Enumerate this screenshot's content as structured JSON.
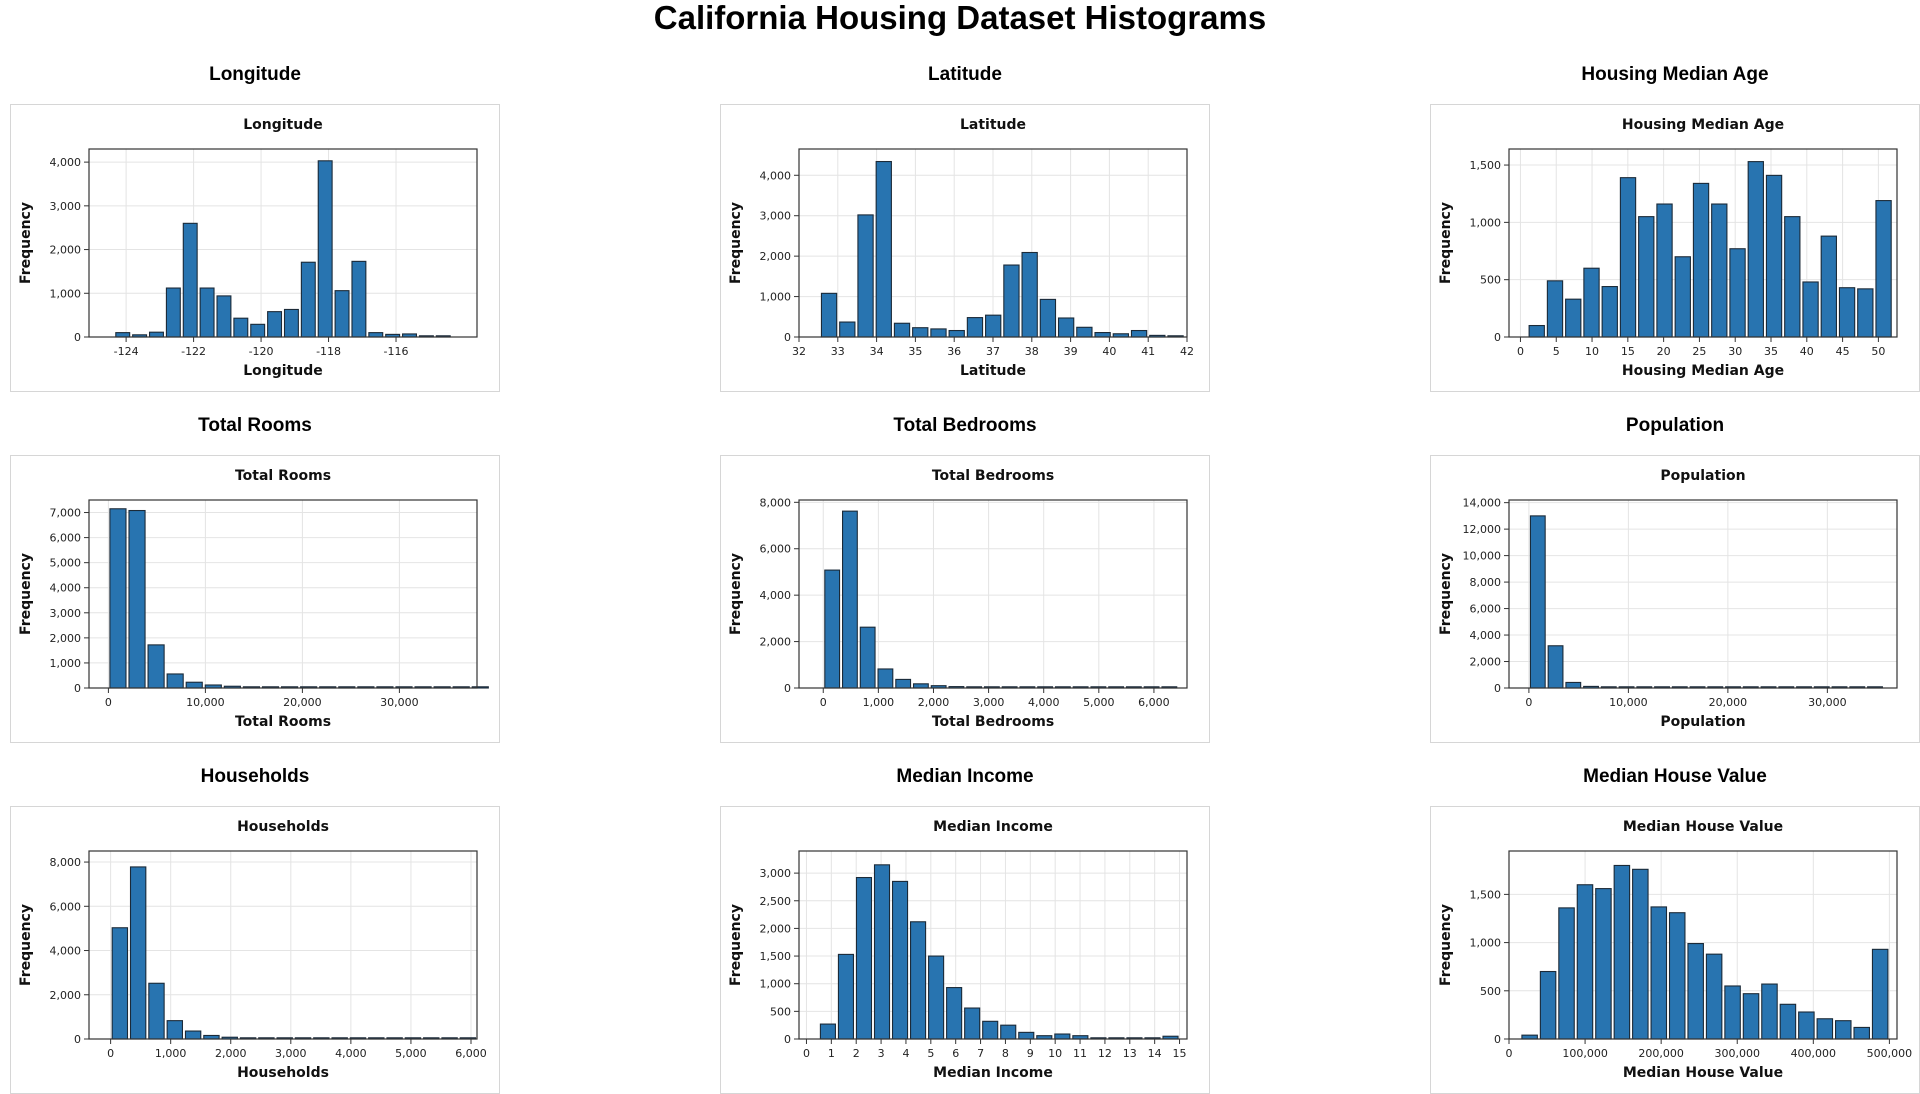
{
  "title": "California Housing Dataset Histograms",
  "chart_data": [
    {
      "type": "bar",
      "title": "Longitude",
      "inner_title": "Longitude",
      "xlabel": "Longitude",
      "ylabel": "Frequency",
      "xlim": [
        -125.1,
        -113.6
      ],
      "ylim": [
        0,
        4300
      ],
      "xticks": [
        -124,
        -122,
        -120,
        -118,
        -116
      ],
      "xtick_labels": [
        "-124",
        "-122",
        "-120",
        "-118",
        "-116"
      ],
      "yticks": [
        0,
        1000,
        2000,
        3000,
        4000
      ],
      "ytick_labels": [
        "0",
        "1,000",
        "2,000",
        "3,000",
        "4,000"
      ],
      "bin_start": -124.35,
      "bin_width": 0.5,
      "values": [
        100,
        50,
        110,
        1120,
        2600,
        1120,
        940,
        430,
        290,
        580,
        630,
        1710,
        4030,
        1060,
        1730,
        100,
        60,
        70,
        20,
        20
      ],
      "grid": true,
      "bar_color": "#2874b0"
    },
    {
      "type": "bar",
      "title": "Latitude",
      "inner_title": "Latitude",
      "xlabel": "Latitude",
      "ylabel": "Frequency",
      "xlim": [
        32,
        42
      ],
      "ylim": [
        0,
        4650
      ],
      "xticks": [
        32,
        33,
        34,
        35,
        36,
        37,
        38,
        39,
        40,
        41,
        42
      ],
      "xtick_labels": [
        "32",
        "33",
        "34",
        "35",
        "36",
        "37",
        "38",
        "39",
        "40",
        "41",
        "42"
      ],
      "yticks": [
        0,
        1000,
        2000,
        3000,
        4000
      ],
      "ytick_labels": [
        "0",
        "1,000",
        "2,000",
        "3,000",
        "4,000"
      ],
      "bin_start": 32.54,
      "bin_width": 0.47,
      "values": [
        1080,
        370,
        3020,
        4340,
        340,
        230,
        200,
        160,
        480,
        540,
        1780,
        2090,
        930,
        470,
        240,
        110,
        80,
        160,
        40,
        30
      ],
      "grid": true,
      "bar_color": "#2874b0"
    },
    {
      "type": "bar",
      "title": "Housing Median Age",
      "inner_title": "Housing Median Age",
      "xlabel": "Housing Median Age",
      "ylabel": "Frequency",
      "xlim": [
        -1.6,
        52.6
      ],
      "ylim": [
        0,
        1640
      ],
      "xticks": [
        0,
        5,
        10,
        15,
        20,
        25,
        30,
        35,
        40,
        45,
        50
      ],
      "xtick_labels": [
        "0",
        "5",
        "10",
        "15",
        "20",
        "25",
        "30",
        "35",
        "40",
        "45",
        "50"
      ],
      "yticks": [
        0,
        500,
        1000,
        1500
      ],
      "ytick_labels": [
        "0",
        "500",
        "1,000",
        "1,500"
      ],
      "bin_start": 1,
      "bin_width": 2.55,
      "values": [
        100,
        490,
        330,
        600,
        440,
        1390,
        1050,
        1160,
        700,
        1340,
        1160,
        770,
        1530,
        1410,
        1050,
        480,
        880,
        430,
        420,
        1190
      ],
      "grid": true,
      "bar_color": "#2874b0"
    },
    {
      "type": "bar",
      "title": "Total Rooms",
      "inner_title": "Total Rooms",
      "xlabel": "Total Rooms",
      "ylabel": "Frequency",
      "xlim": [
        -2000,
        38000
      ],
      "ylim": [
        0,
        7500
      ],
      "xticks": [
        0,
        10000,
        20000,
        30000
      ],
      "xtick_labels": [
        "0",
        "10,000",
        "20,000",
        "30,000"
      ],
      "yticks": [
        0,
        1000,
        2000,
        3000,
        4000,
        5000,
        6000,
        7000
      ],
      "ytick_labels": [
        "0",
        "1,000",
        "2,000",
        "3,000",
        "4,000",
        "5,000",
        "6,000",
        "7,000"
      ],
      "bin_start": 2,
      "bin_width": 1966,
      "values": [
        7150,
        7080,
        1720,
        560,
        230,
        120,
        70,
        40,
        25,
        15,
        10,
        8,
        5,
        4,
        3,
        2,
        2,
        1,
        1,
        1
      ],
      "grid": true,
      "bar_color": "#2874b0"
    },
    {
      "type": "bar",
      "title": "Total Bedrooms",
      "inner_title": "Total Bedrooms",
      "xlabel": "Total Bedrooms",
      "ylabel": "Frequency",
      "xlim": [
        -440,
        6600
      ],
      "ylim": [
        0,
        8100
      ],
      "xticks": [
        0,
        1000,
        2000,
        3000,
        4000,
        5000,
        6000
      ],
      "xtick_labels": [
        "0",
        "1,000",
        "2,000",
        "3,000",
        "4,000",
        "5,000",
        "6,000"
      ],
      "bin_start": 1,
      "bin_width": 322,
      "yticks": [
        0,
        2000,
        4000,
        6000,
        8000
      ],
      "ytick_labels": [
        "0",
        "2,000",
        "4,000",
        "6,000",
        "8,000"
      ],
      "values": [
        5080,
        7620,
        2620,
        820,
        370,
        180,
        100,
        60,
        40,
        25,
        15,
        10,
        8,
        5,
        4,
        3,
        2,
        2,
        1,
        1
      ],
      "grid": true,
      "bar_color": "#2874b0"
    },
    {
      "type": "bar",
      "title": "Population",
      "inner_title": "Population",
      "xlabel": "Population",
      "ylabel": "Frequency",
      "xlim": [
        -2000,
        37000
      ],
      "ylim": [
        0,
        14200
      ],
      "xticks": [
        0,
        10000,
        20000,
        30000
      ],
      "xtick_labels": [
        "0",
        "10,000",
        "20,000",
        "30,000"
      ],
      "yticks": [
        0,
        2000,
        4000,
        6000,
        8000,
        10000,
        12000,
        14000
      ],
      "ytick_labels": [
        "0",
        "2,000",
        "4,000",
        "6,000",
        "8,000",
        "10,000",
        "12,000",
        "14,000"
      ],
      "bin_start": 3,
      "bin_width": 1784,
      "values": [
        13000,
        3190,
        420,
        120,
        40,
        20,
        10,
        6,
        4,
        3,
        2,
        2,
        1,
        1,
        1,
        1,
        1,
        1,
        1,
        1
      ],
      "grid": true,
      "bar_color": "#2874b0"
    },
    {
      "type": "bar",
      "title": "Households",
      "inner_title": "Households",
      "xlabel": "Households",
      "ylabel": "Frequency",
      "xlim": [
        -360,
        6100
      ],
      "ylim": [
        0,
        8500
      ],
      "xticks": [
        0,
        1000,
        2000,
        3000,
        4000,
        5000,
        6000
      ],
      "xtick_labels": [
        "0",
        "1,000",
        "2,000",
        "3,000",
        "4,000",
        "5,000",
        "6,000"
      ],
      "yticks": [
        0,
        2000,
        4000,
        6000,
        8000
      ],
      "ytick_labels": [
        "0",
        "2,000",
        "4,000",
        "6,000",
        "8,000"
      ],
      "bin_start": 1,
      "bin_width": 305,
      "values": [
        5030,
        7780,
        2520,
        830,
        360,
        160,
        80,
        50,
        30,
        20,
        12,
        8,
        5,
        4,
        3,
        2,
        2,
        1,
        1,
        1
      ],
      "grid": true,
      "bar_color": "#2874b0"
    },
    {
      "type": "bar",
      "title": "Median Income",
      "inner_title": "Median Income",
      "xlabel": "Median Income",
      "ylabel": "Frequency",
      "xlim": [
        -0.3,
        15.3
      ],
      "ylim": [
        0,
        3400
      ],
      "xticks": [
        0,
        1,
        2,
        3,
        4,
        5,
        6,
        7,
        8,
        9,
        10,
        11,
        12,
        13,
        14,
        15
      ],
      "xtick_labels": [
        "0",
        "1",
        "2",
        "3",
        "4",
        "5",
        "6",
        "7",
        "8",
        "9",
        "10",
        "11",
        "12",
        "13",
        "14",
        "15"
      ],
      "yticks": [
        0,
        500,
        1000,
        1500,
        2000,
        2500,
        3000
      ],
      "ytick_labels": [
        "0",
        "500",
        "1,000",
        "1,500",
        "2,000",
        "2,500",
        "3,000"
      ],
      "bin_start": 0.5,
      "bin_width": 0.725,
      "values": [
        270,
        1530,
        2920,
        3150,
        2850,
        2120,
        1500,
        930,
        560,
        320,
        250,
        120,
        60,
        90,
        60,
        20,
        15,
        10,
        5,
        50
      ],
      "grid": true,
      "bar_color": "#2874b0"
    },
    {
      "type": "bar",
      "title": "Median House Value",
      "inner_title": "Median House Value",
      "xlabel": "Median House Value",
      "ylabel": "Frequency",
      "xlim": [
        0,
        510000
      ],
      "ylim": [
        0,
        1950
      ],
      "xticks": [
        0,
        100000,
        200000,
        300000,
        400000,
        500000
      ],
      "xtick_labels": [
        "0",
        "100,000",
        "200,000",
        "300,000",
        "400,000",
        "500,000"
      ],
      "yticks": [
        0,
        500,
        1000,
        1500
      ],
      "ytick_labels": [
        "0",
        "500",
        "1,000",
        "1,500"
      ],
      "bin_start": 15000,
      "bin_width": 24250,
      "values": [
        40,
        700,
        1360,
        1600,
        1560,
        1800,
        1760,
        1370,
        1310,
        990,
        880,
        550,
        470,
        570,
        360,
        280,
        210,
        190,
        120,
        930
      ],
      "grid": true,
      "bar_color": "#2874b0"
    }
  ]
}
